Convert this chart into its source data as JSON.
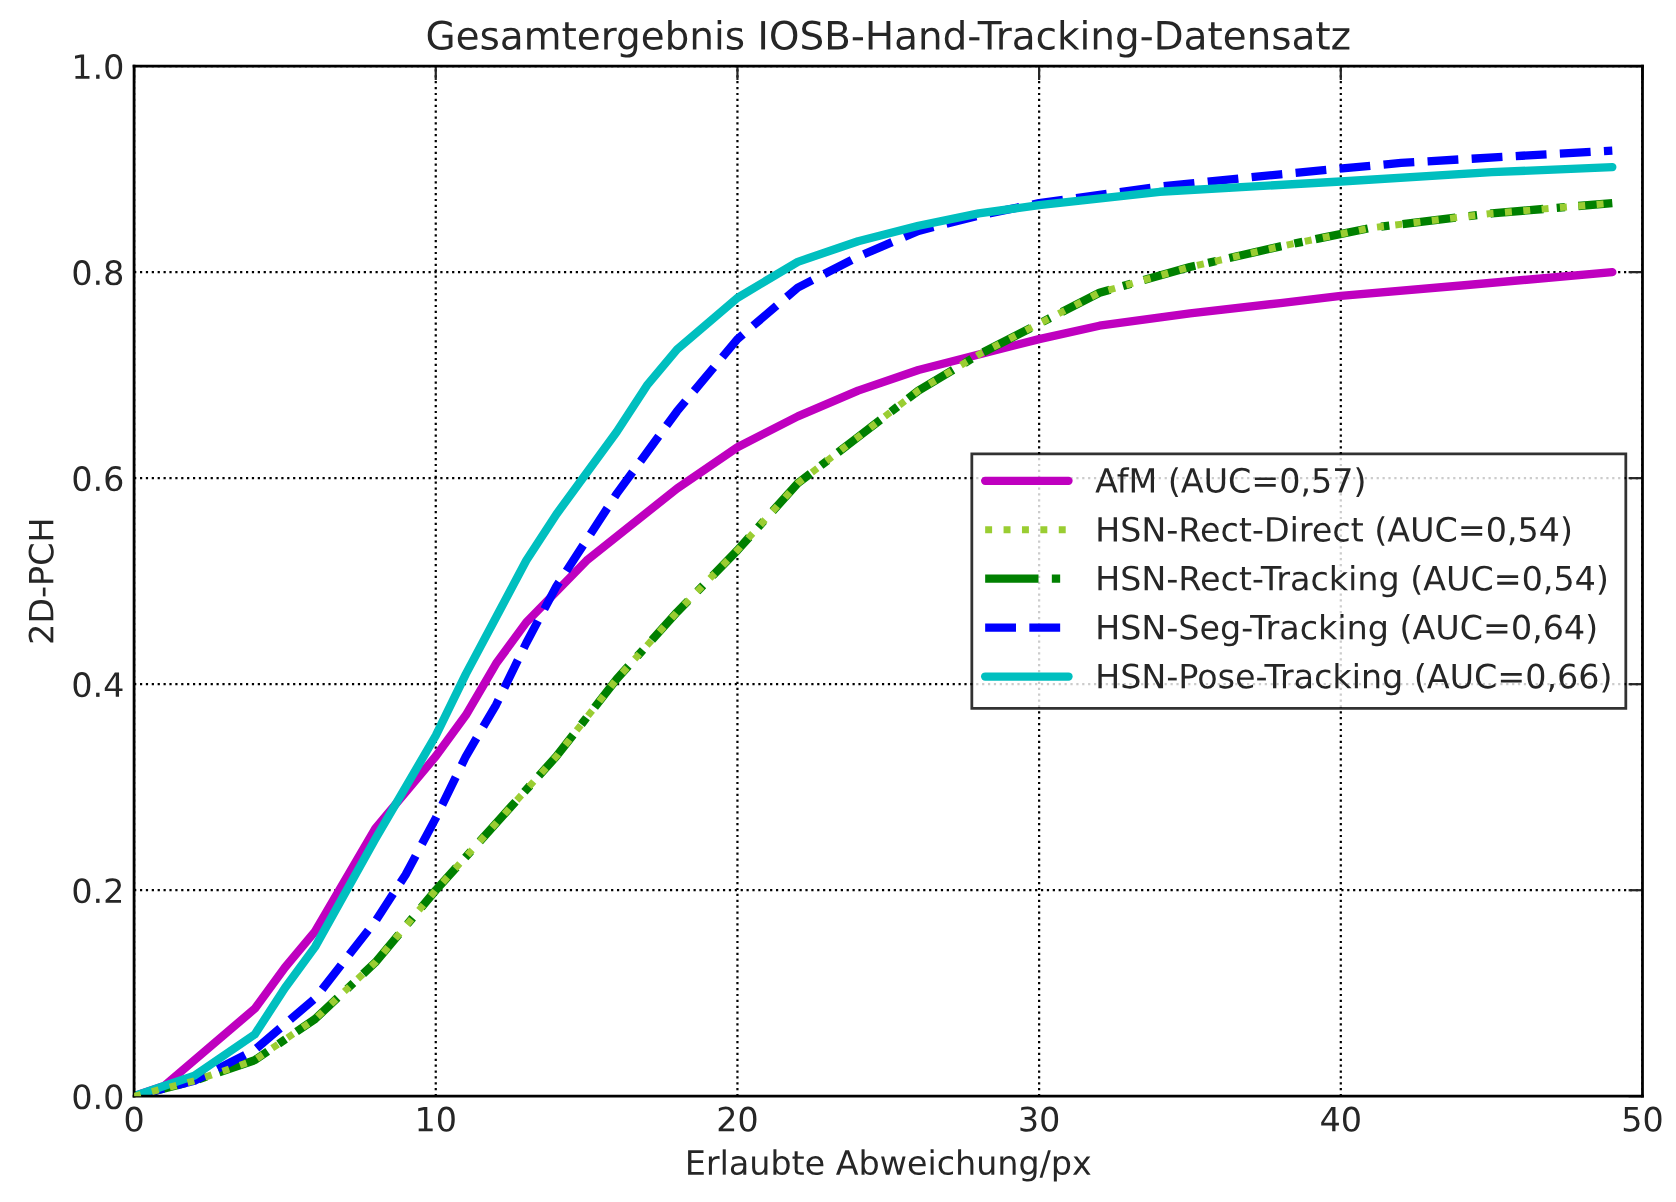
{
  "chart_data": {
    "type": "line",
    "title": "Gesamtergebnis IOSB-Hand-Tracking-Datensatz",
    "xlabel": "Erlaubte Abweichung/px",
    "ylabel": "2D-PCH",
    "xlim": [
      0,
      50
    ],
    "ylim": [
      0,
      1.0
    ],
    "xticks": [
      0,
      10,
      20,
      30,
      40,
      50
    ],
    "yticks": [
      {
        "value": 0,
        "label": "0.0"
      },
      0.2,
      0.4,
      0.6,
      0.8,
      {
        "value": 1.0,
        "label": "1.0"
      }
    ],
    "grid": true,
    "legend": "right",
    "marker": "none",
    "series": [
      {
        "name": "AfM (AUC=0,57)",
        "color": "#bf00bf",
        "line_style": "solid",
        "x": [
          0,
          1,
          2,
          4,
          5,
          6,
          8,
          10,
          11,
          12,
          13,
          15,
          18,
          20,
          22,
          24,
          26,
          28,
          30,
          32,
          35,
          38,
          40,
          44,
          49
        ],
        "values": [
          0.0,
          0.01,
          0.035,
          0.085,
          0.125,
          0.16,
          0.26,
          0.33,
          0.37,
          0.42,
          0.46,
          0.52,
          0.59,
          0.63,
          0.66,
          0.685,
          0.705,
          0.72,
          0.735,
          0.748,
          0.76,
          0.77,
          0.777,
          0.787,
          0.8
        ]
      },
      {
        "name": "HSN-Rect-Direct (AUC=0,54)",
        "color": "#9acd32",
        "line_style": "dotted",
        "x": [
          0,
          2,
          4,
          6,
          8,
          10,
          12,
          14,
          16,
          18,
          20,
          22,
          24,
          26,
          28,
          30,
          32,
          35,
          38,
          41,
          45,
          49
        ],
        "values": [
          0.0,
          0.015,
          0.035,
          0.075,
          0.13,
          0.2,
          0.265,
          0.33,
          0.405,
          0.47,
          0.53,
          0.595,
          0.64,
          0.685,
          0.72,
          0.75,
          0.78,
          0.805,
          0.825,
          0.843,
          0.857,
          0.867
        ]
      },
      {
        "name": "HSN-Rect-Tracking (AUC=0,54)",
        "color": "#008000",
        "line_style": "dashdot",
        "x": [
          0,
          2,
          4,
          6,
          8,
          10,
          12,
          14,
          16,
          18,
          20,
          22,
          24,
          26,
          28,
          30,
          32,
          35,
          38,
          41,
          45,
          49
        ],
        "values": [
          0.0,
          0.015,
          0.035,
          0.075,
          0.13,
          0.2,
          0.265,
          0.33,
          0.405,
          0.47,
          0.53,
          0.595,
          0.64,
          0.685,
          0.72,
          0.75,
          0.78,
          0.805,
          0.825,
          0.843,
          0.857,
          0.867
        ]
      },
      {
        "name": "HSN-Seg-Tracking (AUC=0,64)",
        "color": "#0000ff",
        "line_style": "dashed",
        "x": [
          0,
          2,
          4,
          6,
          8,
          9,
          10,
          11,
          12,
          13,
          14,
          16,
          18,
          20,
          22,
          24,
          26,
          28,
          30,
          34,
          38,
          42,
          46,
          49
        ],
        "values": [
          0.0,
          0.015,
          0.045,
          0.095,
          0.17,
          0.215,
          0.27,
          0.33,
          0.38,
          0.44,
          0.495,
          0.585,
          0.665,
          0.735,
          0.785,
          0.815,
          0.84,
          0.855,
          0.867,
          0.883,
          0.895,
          0.906,
          0.913,
          0.918
        ]
      },
      {
        "name": "HSN-Pose-Tracking (AUC=0,66)",
        "color": "#00bfbf",
        "line_style": "solid",
        "x": [
          0,
          2,
          4,
          5,
          6,
          8,
          10,
          11,
          12,
          13,
          14,
          16,
          17,
          18,
          20,
          22,
          24,
          26,
          28,
          30,
          34,
          40,
          45,
          49
        ],
        "values": [
          0.0,
          0.02,
          0.06,
          0.105,
          0.145,
          0.25,
          0.35,
          0.41,
          0.465,
          0.52,
          0.565,
          0.645,
          0.69,
          0.725,
          0.775,
          0.81,
          0.83,
          0.845,
          0.857,
          0.865,
          0.878,
          0.888,
          0.897,
          0.902
        ]
      }
    ]
  }
}
